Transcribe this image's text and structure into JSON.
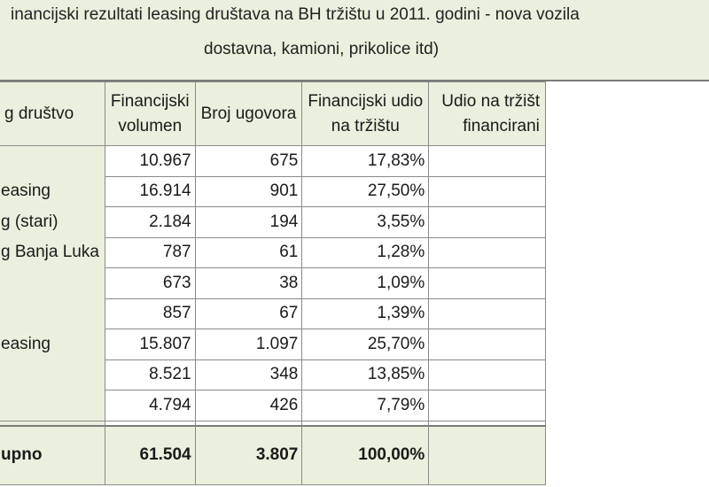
{
  "title": {
    "line1": "inancijski rezultati  leasing društava na BH tržištu u 2011. godini - nova vozila",
    "line2": "dostavna, kamioni, prikolice itd)"
  },
  "table": {
    "headers": {
      "company": "g društvo",
      "volume_line1": "Financijski",
      "volume_line2": "volumen",
      "contracts": "Broj ugovora",
      "share_line1": "Financijski udio",
      "share_line2": "na tržištu",
      "market_line1": "Udio na tržišt",
      "market_line2": "financirani"
    },
    "rows": [
      {
        "name": "",
        "volume": "10.967",
        "contracts": "675",
        "share": "17,83%"
      },
      {
        "name": "easing",
        "volume": "16.914",
        "contracts": "901",
        "share": "27,50%"
      },
      {
        "name": "g (stari)",
        "volume": "2.184",
        "contracts": "194",
        "share": "3,55%"
      },
      {
        "name": "g Banja Luka",
        "volume": "787",
        "contracts": "61",
        "share": "1,28%"
      },
      {
        "name": "",
        "volume": "673",
        "contracts": "38",
        "share": "1,09%"
      },
      {
        "name": "",
        "volume": "857",
        "contracts": "67",
        "share": "1,39%"
      },
      {
        "name": "easing",
        "volume": "15.807",
        "contracts": "1.097",
        "share": "25,70%"
      },
      {
        "name": "",
        "volume": "8.521",
        "contracts": "348",
        "share": "13,85%"
      },
      {
        "name": "",
        "volume": "4.794",
        "contracts": "426",
        "share": "7,79%"
      }
    ],
    "total": {
      "name": "upno",
      "volume": "61.504",
      "contracts": "3.807",
      "share": "100,00%"
    }
  }
}
